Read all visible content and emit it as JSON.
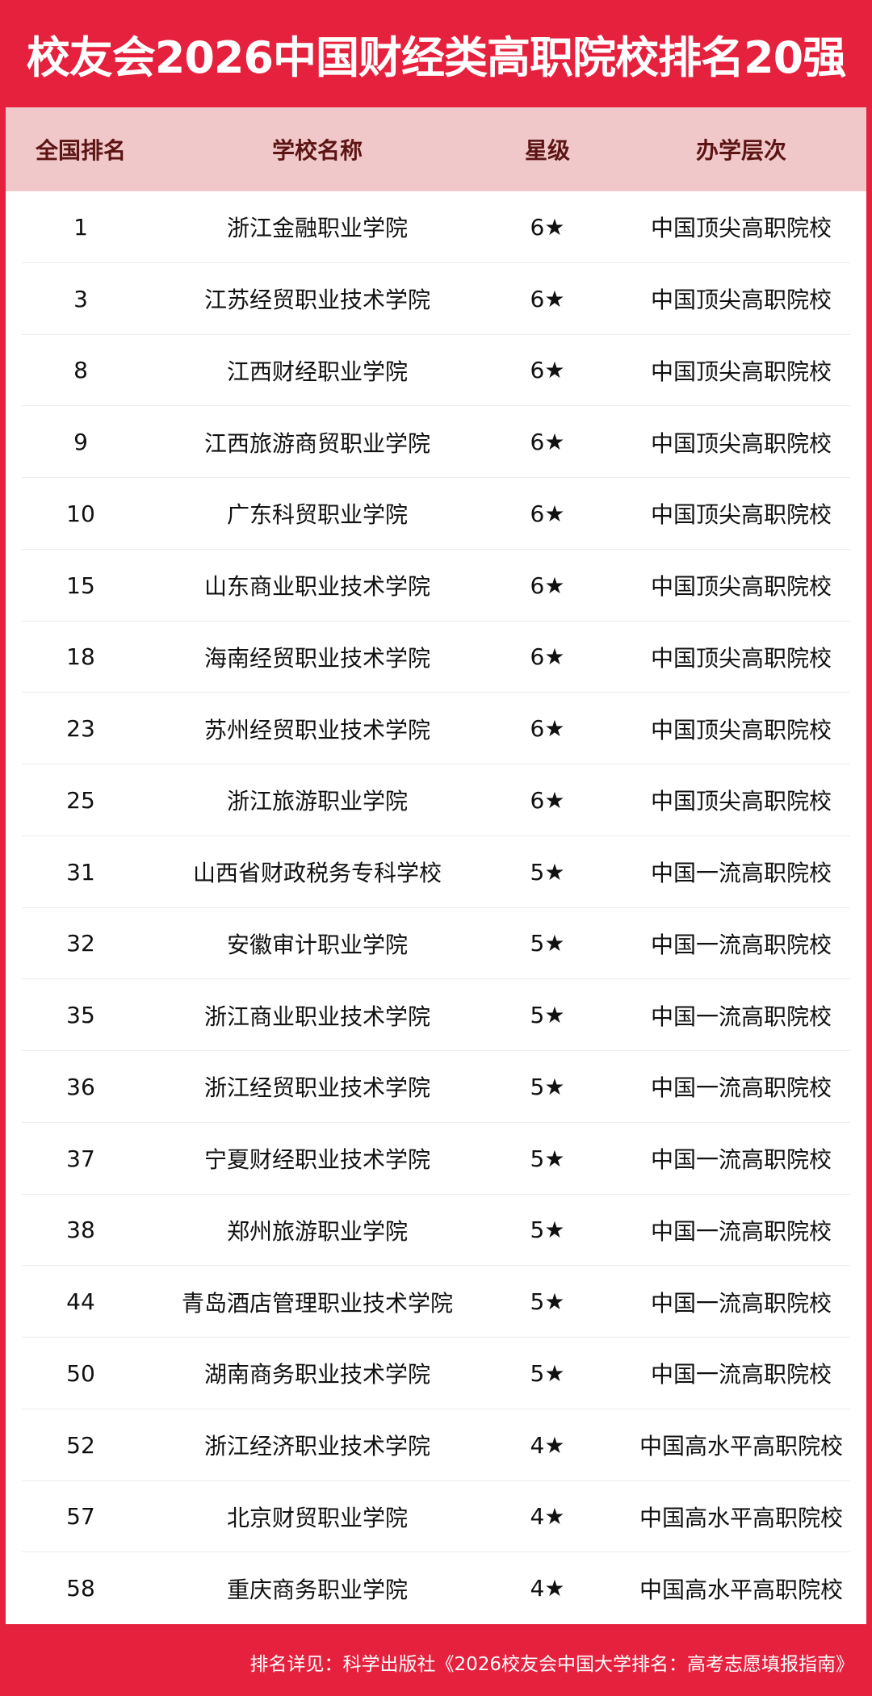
{
  "title": "校友会2026中国财经类高职院校排名20强",
  "headers": [
    "全国排名",
    "学校名称",
    "星级",
    "办学层次"
  ],
  "rows": [
    [
      "1",
      "浙江金融职业学院",
      "6★",
      "中国顶尖高职院校"
    ],
    [
      "3",
      "江苏经贸职业技术学院",
      "6★",
      "中国顶尖高职院校"
    ],
    [
      "8",
      "江西财经职业学院",
      "6★",
      "中国顶尖高职院校"
    ],
    [
      "9",
      "江西旅游商贸职业学院",
      "6★",
      "中国顶尖高职院校"
    ],
    [
      "10",
      "广东科贸职业学院",
      "6★",
      "中国顶尖高职院校"
    ],
    [
      "15",
      "山东商业职业技术学院",
      "6★",
      "中国顶尖高职院校"
    ],
    [
      "18",
      "海南经贸职业技术学院",
      "6★",
      "中国顶尖高职院校"
    ],
    [
      "23",
      "苏州经贸职业技术学院",
      "6★",
      "中国顶尖高职院校"
    ],
    [
      "25",
      "浙江旅游职业学院",
      "6★",
      "中国顶尖高职院校"
    ],
    [
      "31",
      "山西省财政税务专科学校",
      "5★",
      "中国一流高职院校"
    ],
    [
      "32",
      "安徽审计职业学院",
      "5★",
      "中国一流高职院校"
    ],
    [
      "35",
      "浙江商业职业技术学院",
      "5★",
      "中国一流高职院校"
    ],
    [
      "36",
      "浙江经贸职业技术学院",
      "5★",
      "中国一流高职院校"
    ],
    [
      "37",
      "宁夏财经职业技术学院",
      "5★",
      "中国一流高职院校"
    ],
    [
      "38",
      "郑州旅游职业学院",
      "5★",
      "中国一流高职院校"
    ],
    [
      "44",
      "青岛酒店管理职业技术学院",
      "5★",
      "中国一流高职院校"
    ],
    [
      "50",
      "湖南商务职业技术学院",
      "5★",
      "中国一流高职院校"
    ],
    [
      "52",
      "浙江经济职业技术学院",
      "4★",
      "中国高水平高职院校"
    ],
    [
      "57",
      "北京财贸职业学院",
      "4★",
      "中国高水平高职院校"
    ],
    [
      "58",
      "重庆商务职业学院",
      "4★",
      "中国高水平高职院校"
    ]
  ],
  "footer": "排名详见：科学出版社《2026校友会中国大学排名：高考志愿填报指南》",
  "colors": {
    "brand_red": "#e6213e",
    "header_bg": "#f1c8c9",
    "header_text": "#5c1414"
  }
}
